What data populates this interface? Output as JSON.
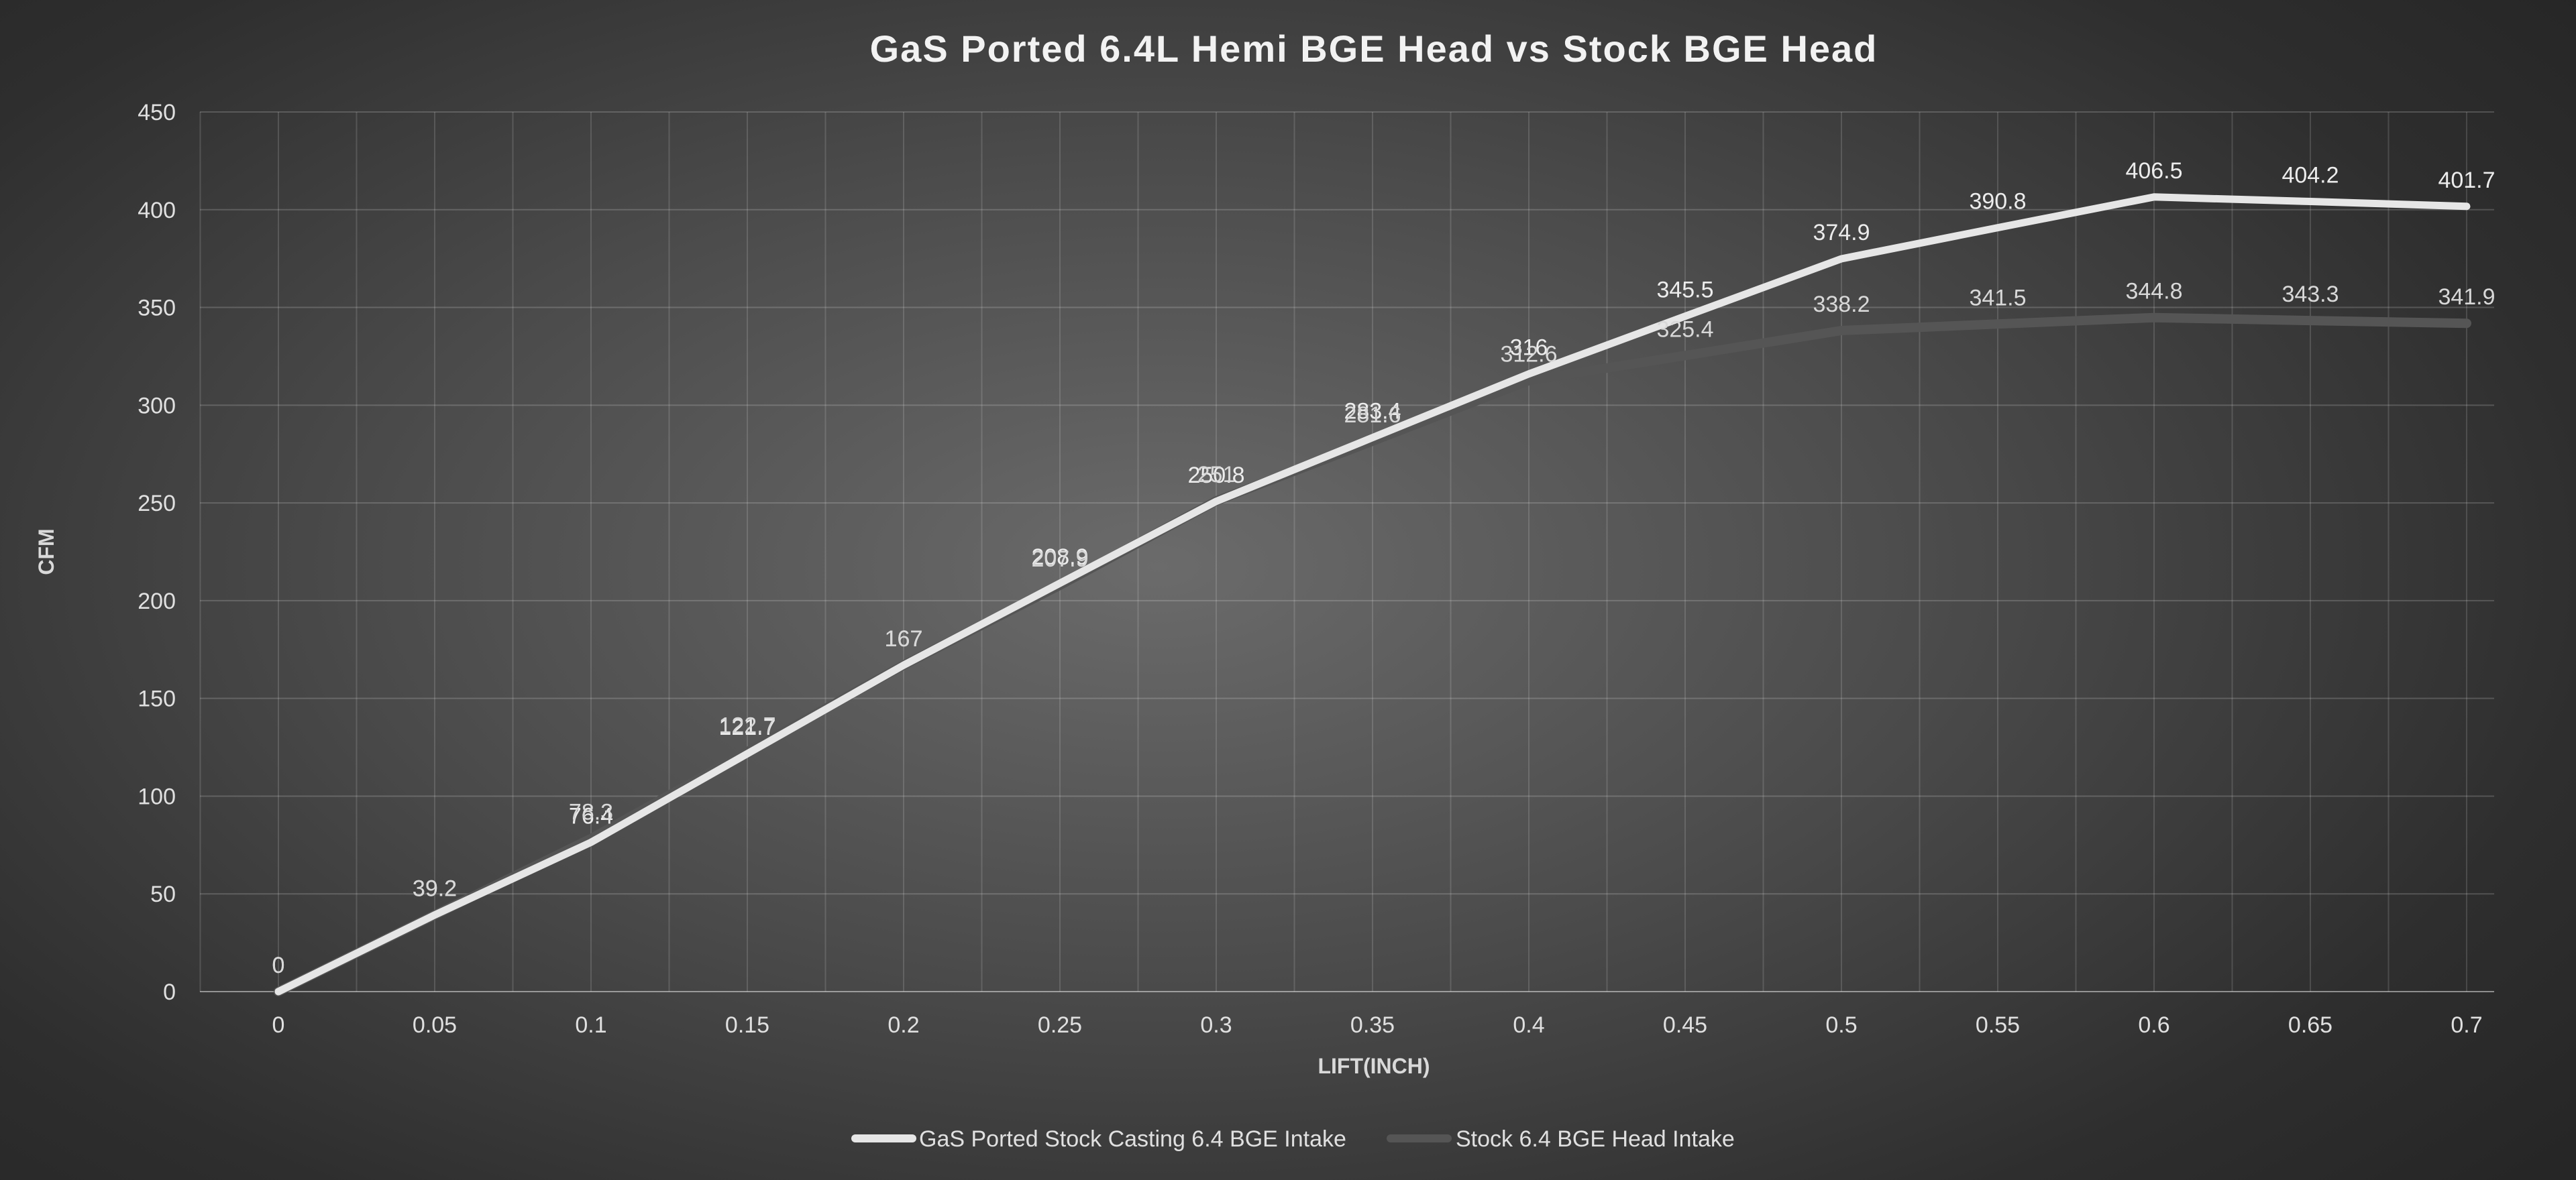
{
  "chart_data": {
    "type": "line",
    "title": "GaS Ported 6.4L Hemi BGE Head vs Stock BGE Head",
    "xlabel": "LIFT(INCH)",
    "ylabel": "CFM",
    "x": [
      0,
      0.05,
      0.1,
      0.15,
      0.2,
      0.25,
      0.3,
      0.35,
      0.4,
      0.45,
      0.5,
      0.55,
      0.6,
      0.65,
      0.7
    ],
    "x_tick_labels": [
      "0",
      "0.05",
      "0.1",
      "0.15",
      "0.2",
      "0.25",
      "0.3",
      "0.35",
      "0.4",
      "0.45",
      "0.5",
      "0.55",
      "0.6",
      "0.65",
      "0.7"
    ],
    "ylim": [
      0,
      450
    ],
    "y_ticks": [
      0,
      50,
      100,
      150,
      200,
      250,
      300,
      350,
      400,
      450
    ],
    "grid": true,
    "legend_position": "bottom",
    "series": [
      {
        "name": "GaS Ported Stock Casting 6.4 BGE Intake",
        "color": "#e6e6e6",
        "values": [
          0,
          39.2,
          76.4,
          121.7,
          167,
          208.9,
          250.8,
          283.4,
          316,
          345.5,
          374.9,
          390.8,
          406.5,
          404.2,
          401.7
        ],
        "labels": [
          "0",
          "39.2",
          "76.4",
          "121.7",
          "167",
          "208.9",
          "250.8",
          "283.4",
          "316",
          "345.5",
          "374.9",
          "390.8",
          "406.5",
          "404.2",
          "401.7"
        ]
      },
      {
        "name": "Stock 6.4 BGE Head Intake",
        "color": "#555555",
        "values": [
          0,
          39.2,
          78.3,
          122.7,
          167,
          207.9,
          251.0,
          281.6,
          312.6,
          325.4,
          338.2,
          341.5,
          344.8,
          343.3,
          341.9
        ],
        "labels": [
          "0",
          "39.2",
          "78.3",
          "122.7",
          "167",
          "207.9",
          "251",
          "281.6",
          "312.6",
          "325.4",
          "338.2",
          "341.5",
          "344.8",
          "343.3",
          "341.9"
        ]
      }
    ]
  }
}
